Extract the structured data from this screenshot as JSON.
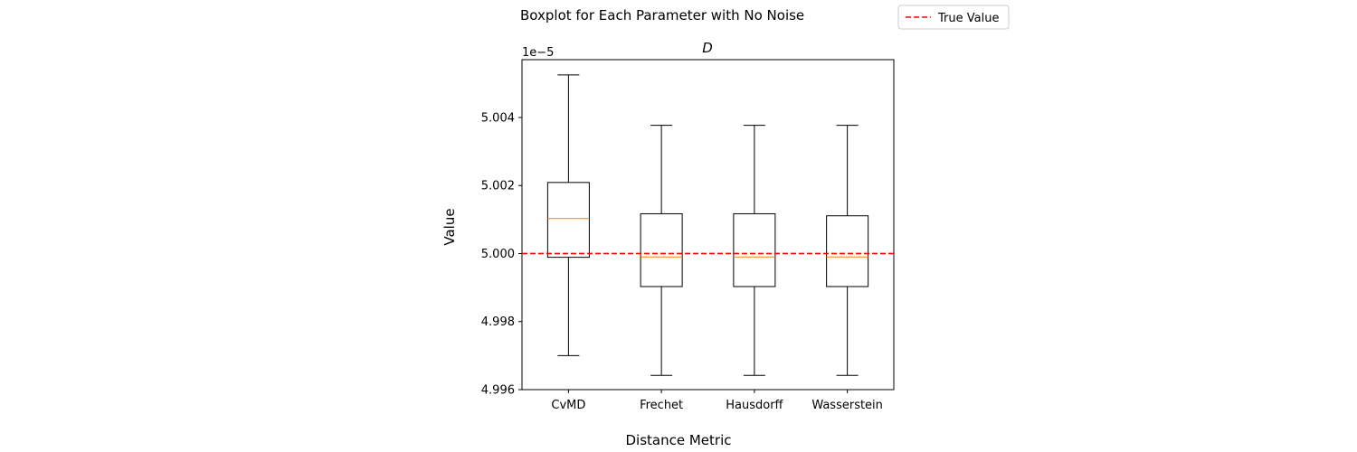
{
  "chart_data": {
    "type": "boxplot",
    "suptitle": "Boxplot for Each Parameter with No Noise",
    "title": "D",
    "xlabel": "Distance Metric",
    "ylabel": "Value",
    "y_scale_label": "1e−5",
    "categories": [
      "CvMD",
      "Frechet",
      "Hausdorff",
      "Wasserstein"
    ],
    "ylim": [
      4.996,
      5.0057
    ],
    "yticks": [
      4.996,
      4.998,
      5.0,
      5.002,
      5.004
    ],
    "ytick_labels": [
      "4.996",
      "4.998",
      "5.000",
      "5.002",
      "5.004"
    ],
    "boxes": [
      {
        "category": "CvMD",
        "whisker_low": 4.997,
        "q1": 4.99989,
        "median": 5.00103,
        "q3": 5.00209,
        "whisker_high": 5.00525
      },
      {
        "category": "Frechet",
        "whisker_low": 4.99642,
        "q1": 4.99903,
        "median": 4.9999,
        "q3": 5.00117,
        "whisker_high": 5.00377
      },
      {
        "category": "Hausdorff",
        "whisker_low": 4.99642,
        "q1": 4.99903,
        "median": 4.9999,
        "q3": 5.00117,
        "whisker_high": 5.00377
      },
      {
        "category": "Wasserstein",
        "whisker_low": 4.99642,
        "q1": 4.99903,
        "median": 4.9999,
        "q3": 5.00111,
        "whisker_high": 5.00377
      }
    ],
    "reference_line": {
      "label": "True Value",
      "value": 5.0,
      "color": "#ff0000",
      "style": "dashed"
    },
    "legend": {
      "entries": [
        "True Value"
      ],
      "placement": "top-right"
    },
    "colors": {
      "box": "#000000",
      "median": "#ff7f0e",
      "reference": "#ff0000"
    },
    "grid": false
  }
}
